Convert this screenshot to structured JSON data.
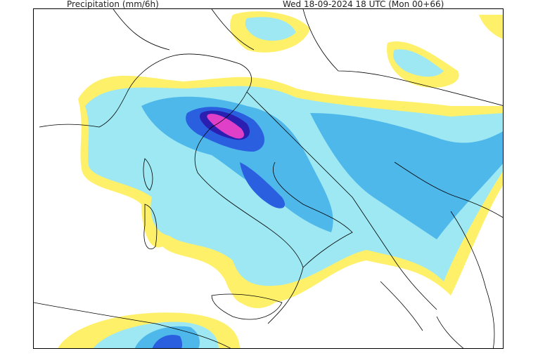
{
  "header": {
    "left_title": "Precipitation (mm/6h)",
    "right_title": "Wed 18-09-2024 18 UTC (Mon 00+66)"
  },
  "map": {
    "region": "Italy, Balkans and Greece",
    "colors": {
      "light": "#fff06a",
      "low": "#9de8f2",
      "mid": "#4fb8ea",
      "high": "#2a5fe0",
      "very_high": "#2a1fb0",
      "extreme": "#e040c8"
    }
  }
}
